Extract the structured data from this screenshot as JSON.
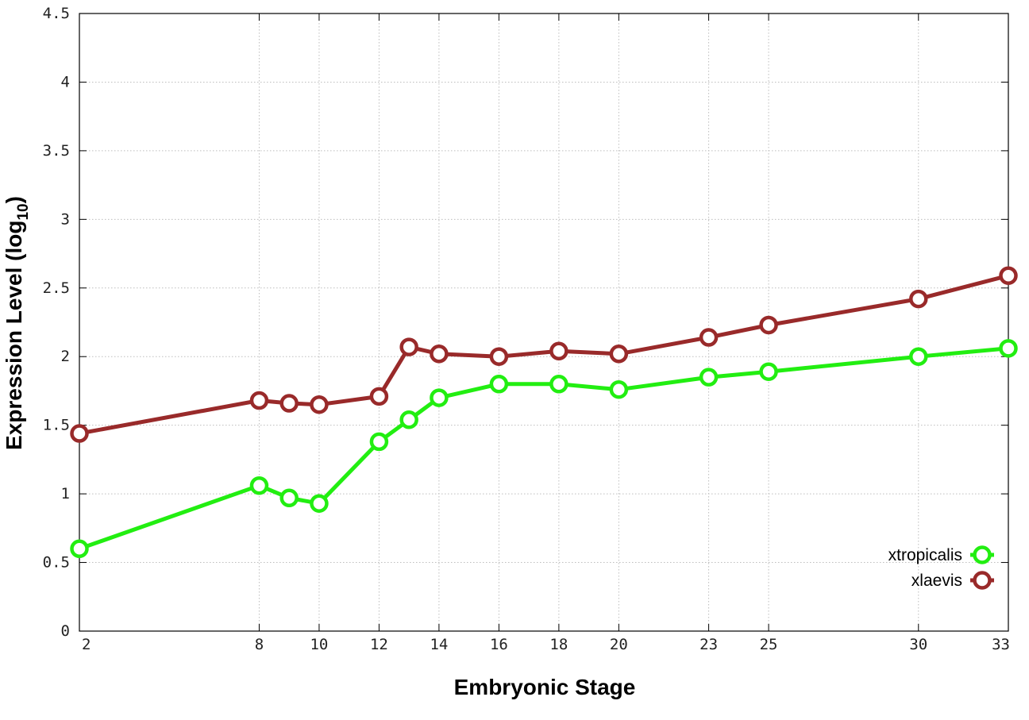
{
  "chart_data": {
    "type": "line",
    "title": "",
    "xlabel": "Embryonic Stage",
    "ylabel_main": "Expression Level (log",
    "ylabel_sub": "10",
    "ylabel_close": ")",
    "x": [
      2,
      8,
      9,
      10,
      12,
      13,
      14,
      16,
      18,
      20,
      23,
      25,
      30,
      33
    ],
    "xticks": [
      2,
      8,
      10,
      12,
      14,
      16,
      18,
      20,
      23,
      25,
      30,
      33
    ],
    "xlim": [
      2,
      33
    ],
    "yticks": [
      "0",
      "0.5",
      "1",
      "1.5",
      "2",
      "2.5",
      "3",
      "3.5",
      "4",
      "4.5"
    ],
    "ylim": [
      0,
      4.5
    ],
    "grid": true,
    "legend_position": "bottom-right",
    "series": [
      {
        "name": "xtropicalis",
        "color": "#22ee11",
        "values": [
          0.6,
          1.06,
          0.97,
          0.93,
          1.38,
          1.54,
          1.7,
          1.8,
          1.8,
          1.76,
          1.85,
          1.89,
          2.0,
          2.06
        ]
      },
      {
        "name": "xlaevis",
        "color": "#992a2a",
        "values": [
          1.44,
          1.68,
          1.66,
          1.65,
          1.71,
          2.07,
          2.02,
          2.0,
          2.04,
          2.02,
          2.14,
          2.23,
          2.42,
          2.59
        ]
      }
    ]
  }
}
